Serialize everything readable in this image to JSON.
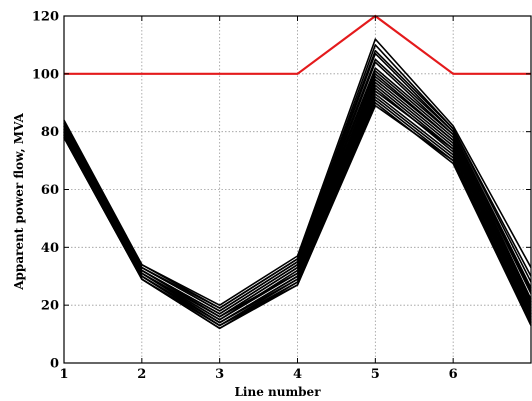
{
  "chart_data": {
    "type": "line",
    "title": "",
    "xlabel": "Line number",
    "ylabel": "Apparent power flow, MVA",
    "xlim": [
      1,
      7
    ],
    "ylim": [
      0,
      120
    ],
    "xticks": [
      1,
      2,
      3,
      4,
      5,
      6,
      7
    ],
    "yticks": [
      0,
      20,
      40,
      60,
      80,
      100,
      120
    ],
    "grid": true,
    "legend": "none",
    "x": [
      1,
      2,
      3,
      4,
      5,
      6,
      7
    ],
    "limit_series": {
      "color": "#e41a1c",
      "values": [
        100,
        100,
        100,
        100,
        120,
        100,
        100
      ]
    },
    "flow_series_color": "#000000",
    "flow_series": [
      [
        84,
        34,
        20,
        37,
        112,
        82,
        33
      ],
      [
        83,
        34,
        19,
        36,
        110,
        81,
        30
      ],
      [
        83,
        33,
        19,
        36,
        108,
        81,
        28
      ],
      [
        82,
        33,
        18,
        35,
        107,
        80,
        26
      ],
      [
        82,
        33,
        18,
        35,
        105,
        80,
        25
      ],
      [
        81,
        32,
        17,
        34,
        104,
        79,
        24
      ],
      [
        81,
        32,
        17,
        34,
        102,
        79,
        22
      ],
      [
        81,
        32,
        16,
        33,
        101,
        78,
        21
      ],
      [
        80,
        31,
        16,
        33,
        99,
        77,
        20
      ],
      [
        80,
        31,
        15,
        32,
        98,
        76,
        19
      ],
      [
        80,
        31,
        15,
        31,
        97,
        75,
        18
      ],
      [
        79,
        30,
        14,
        30,
        96,
        74,
        17
      ],
      [
        79,
        30,
        14,
        30,
        95,
        73,
        16
      ],
      [
        79,
        30,
        13,
        29,
        93,
        72,
        15
      ],
      [
        78,
        29,
        13,
        28,
        92,
        71,
        14
      ],
      [
        78,
        29,
        12,
        28,
        91,
        70,
        13
      ],
      [
        78,
        29,
        12,
        27,
        90,
        69,
        13
      ],
      [
        79,
        30,
        13,
        27,
        89,
        70,
        14
      ],
      [
        80,
        31,
        14,
        29,
        94,
        74,
        17
      ],
      [
        82,
        32,
        16,
        31,
        100,
        77,
        21
      ]
    ]
  }
}
